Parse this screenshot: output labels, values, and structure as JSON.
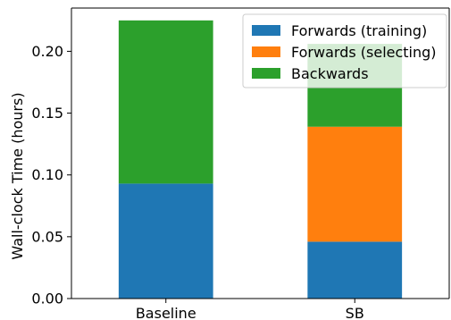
{
  "chart_data": {
    "type": "bar",
    "stacked": true,
    "categories": [
      "Baseline",
      "SB"
    ],
    "series": [
      {
        "name": "Forwards (training)",
        "color": "#1f77b4",
        "values": [
          0.093,
          0.046
        ]
      },
      {
        "name": "Forwards (selecting)",
        "color": "#ff7f0e",
        "values": [
          0.0,
          0.093
        ]
      },
      {
        "name": "Backwards",
        "color": "#2ca02c",
        "values": [
          0.132,
          0.067
        ]
      }
    ],
    "title": "",
    "xlabel": "",
    "ylabel": "Wall-clock Time (hours)",
    "ylim": [
      0,
      0.235
    ],
    "yticks": [
      0.0,
      0.05,
      0.1,
      0.15,
      0.2
    ],
    "ytick_labels": [
      "0.00",
      "0.05",
      "0.10",
      "0.15",
      "0.20"
    ],
    "grid": false,
    "legend_position": "top-right"
  }
}
